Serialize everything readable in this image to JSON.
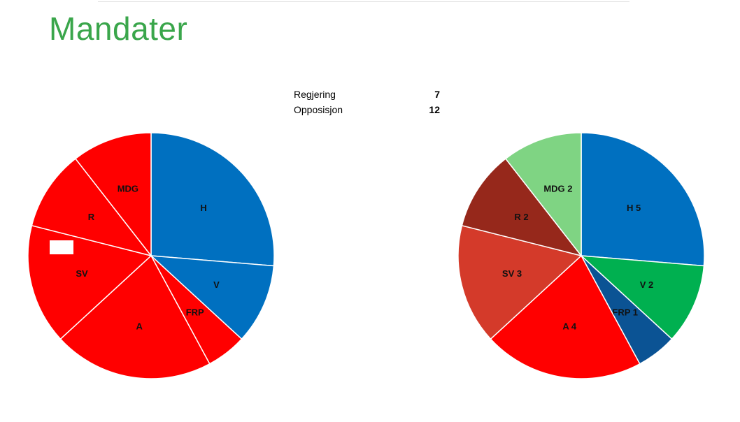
{
  "title": "Mandater",
  "summary": {
    "rows": [
      {
        "label": "Regjering",
        "value": "7"
      },
      {
        "label": "Opposisjon",
        "value": "12"
      }
    ]
  },
  "chart_data": [
    {
      "type": "pie",
      "title": "",
      "start_angle_deg": 0,
      "slices": [
        {
          "label": "H",
          "value": 5,
          "color": "#0070c0"
        },
        {
          "label": "V",
          "value": 2,
          "color": "#0070c0"
        },
        {
          "label": "FRP",
          "value": 1,
          "color": "#ff0000"
        },
        {
          "label": "A",
          "value": 4,
          "color": "#ff0000"
        },
        {
          "label": "SV",
          "value": 3,
          "color": "#ff0000"
        },
        {
          "label": "R",
          "value": 2,
          "color": "#ff0000"
        },
        {
          "label": "MDG",
          "value": 2,
          "color": "#ff0000"
        }
      ]
    },
    {
      "type": "pie",
      "title": "",
      "start_angle_deg": 0,
      "slices": [
        {
          "label": "H 5",
          "value": 5,
          "color": "#0070c0"
        },
        {
          "label": "V 2",
          "value": 2,
          "color": "#00b050"
        },
        {
          "label": "FRP 1",
          "value": 1,
          "color": "#0b5394"
        },
        {
          "label": "A 4",
          "value": 4,
          "color": "#ff0000"
        },
        {
          "label": "SV 3",
          "value": 3,
          "color": "#d43a2a"
        },
        {
          "label": "R 2",
          "value": 2,
          "color": "#96281b"
        },
        {
          "label": "MDG 2",
          "value": 2,
          "color": "#7fd483"
        }
      ]
    }
  ]
}
